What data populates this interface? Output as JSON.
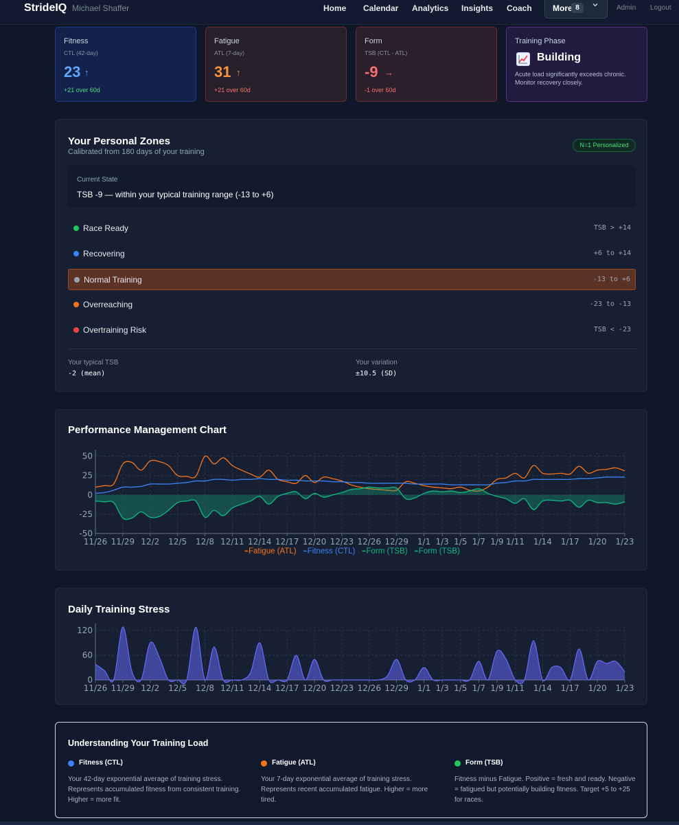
{
  "nav": {
    "brand": "StrideIQ",
    "user": "Michael Shaffer",
    "links": [
      "Home",
      "Calendar",
      "Analytics",
      "Insights",
      "Coach"
    ],
    "more_label": "More",
    "more_count": "8",
    "admin": "Admin",
    "logout": "Logout"
  },
  "cards": {
    "fitness": {
      "title": "Fitness",
      "subtitle": "CTL (42-day)",
      "value": "23",
      "arrow": "↑",
      "delta": "+21 over 60d",
      "color": "#60a5fa"
    },
    "fatigue": {
      "title": "Fatigue",
      "subtitle": "ATL (7-day)",
      "value": "31",
      "arrow": "↑",
      "delta": "+21 over 60d",
      "color": "#fb923c"
    },
    "form": {
      "title": "Form",
      "subtitle": "TSB (CTL - ATL)",
      "value": "-9",
      "arrow": "→",
      "delta": "-1 over 60d",
      "color": "#f87171"
    },
    "phase": {
      "title": "Training Phase",
      "icon": "chart-increasing-icon",
      "name": "Building",
      "description": "Acute load significantly exceeds chronic. Monitor recovery closely."
    }
  },
  "zones": {
    "title": "Your Personal Zones",
    "subtitle": "Calibrated from 180 days of your training",
    "badge": "N=1 Personalized",
    "state_label": "Current State",
    "state_text": "TSB -9 — within your typical training range (-13 to +6)",
    "items": [
      {
        "name": "Race Ready",
        "range": "TSB > +14",
        "color": "#22c55e"
      },
      {
        "name": "Recovering",
        "range": "+6 to +14",
        "color": "#3b82f6"
      },
      {
        "name": "Normal Training",
        "range": "-13 to +6",
        "color": "#9ca3af"
      },
      {
        "name": "Overreaching",
        "range": "-23 to -13",
        "color": "#f97316"
      },
      {
        "name": "Overtraining Risk",
        "range": "TSB < -23",
        "color": "#ef4444"
      }
    ],
    "active_zone": "Normal Training",
    "typical_label": "Your typical TSB",
    "typical_value": "-2 (mean)",
    "variation_label": "Your variation",
    "variation_value": "±10.5 (SD)"
  },
  "pmc": {
    "title": "Performance Management Chart",
    "legend": [
      "Fatigue (ATL)",
      "Fitness (CTL)",
      "Form (TSB)",
      "Form (TSB)"
    ]
  },
  "daily": {
    "title": "Daily Training Stress"
  },
  "understanding": {
    "title": "Understanding Your Training Load",
    "items": [
      {
        "name": "Fitness (CTL)",
        "color": "#3b82f6",
        "description": "Your 42-day exponential average of training stress. Represents accumulated fitness from consistent training. Higher = more fit."
      },
      {
        "name": "Fatigue (ATL)",
        "color": "#f97316",
        "description": "Your 7-day exponential average of training stress. Represents recent accumulated fatigue. Higher = more tired."
      },
      {
        "name": "Form (TSB)",
        "color": "#22c55e",
        "description": "Fitness minus Fatigue. Positive = fresh and ready. Negative = fatigued but potentially building fitness. Target +5 to +25 for races."
      }
    ]
  },
  "chart_data": [
    {
      "type": "line",
      "title": "Performance Management Chart",
      "x_ticks": [
        "11/26",
        "11/29",
        "12/2",
        "12/5",
        "12/8",
        "12/11",
        "12/14",
        "12/17",
        "12/20",
        "12/23",
        "12/26",
        "12/29",
        "1/1",
        "1/3",
        "1/5",
        "1/7",
        "1/9",
        "1/11",
        "1/14",
        "1/17",
        "1/20",
        "1/23"
      ],
      "y_ticks": [
        50,
        25,
        0,
        -25,
        -50
      ],
      "ylim": [
        -50,
        55
      ],
      "x": [
        "11/26",
        "11/27",
        "11/28",
        "11/29",
        "11/30",
        "12/1",
        "12/2",
        "12/3",
        "12/4",
        "12/5",
        "12/6",
        "12/7",
        "12/8",
        "12/9",
        "12/10",
        "12/11",
        "12/12",
        "12/13",
        "12/14",
        "12/15",
        "12/16",
        "12/17",
        "12/18",
        "12/19",
        "12/20",
        "12/21",
        "12/22",
        "12/23",
        "12/24",
        "12/25",
        "12/26",
        "12/27",
        "12/28",
        "12/29",
        "12/30",
        "12/31",
        "1/1",
        "1/2",
        "1/3",
        "1/4",
        "1/5",
        "1/6",
        "1/7",
        "1/8",
        "1/9",
        "1/10",
        "1/11",
        "1/12",
        "1/13",
        "1/14",
        "1/15",
        "1/16",
        "1/17",
        "1/18",
        "1/19",
        "1/20",
        "1/21",
        "1/22",
        "1/23"
      ],
      "series": [
        {
          "name": "Fatigue (ATL)",
          "color": "#f97316",
          "values": [
            10,
            12,
            14,
            40,
            42,
            32,
            44,
            43,
            38,
            25,
            24,
            24,
            50,
            40,
            48,
            38,
            32,
            27,
            23,
            32,
            20,
            17,
            15,
            25,
            16,
            23,
            21,
            18,
            13,
            10,
            8,
            7,
            6,
            6,
            17,
            15,
            12,
            10,
            9,
            8,
            10,
            6,
            5,
            10,
            20,
            22,
            28,
            22,
            38,
            28,
            27,
            28,
            27,
            37,
            28,
            32,
            33,
            35,
            31
          ],
          "stroke_width": 1.3
        },
        {
          "name": "Fitness (CTL)",
          "color": "#3b82f6",
          "values": [
            2,
            3,
            6,
            10,
            10,
            11,
            14,
            14,
            14,
            15,
            16,
            18,
            18,
            20,
            20,
            19,
            20,
            20,
            21,
            20,
            20,
            19,
            19,
            18,
            18,
            18,
            17,
            17,
            16,
            16,
            15,
            15,
            15,
            15,
            15,
            14,
            14,
            14,
            14,
            13,
            13,
            13,
            13,
            13,
            15,
            16,
            18,
            18,
            20,
            20,
            20,
            20,
            20,
            21,
            21,
            22,
            23,
            23,
            23
          ],
          "stroke_width": 1.3
        },
        {
          "name": "Form (TSB)",
          "color": "#10b981",
          "type": "area",
          "values": [
            -8,
            -9,
            -10,
            -30,
            -30,
            -22,
            -29,
            -28,
            -20,
            -10,
            -8,
            -8,
            -29,
            -20,
            -27,
            -17,
            -12,
            -8,
            -2,
            -12,
            -2,
            2,
            4,
            -5,
            2,
            -3,
            0,
            3,
            7,
            8,
            10,
            9,
            9,
            9,
            -5,
            -4,
            2,
            5,
            4,
            5,
            3,
            5,
            8,
            2,
            -2,
            -5,
            -11,
            -5,
            -19,
            -8,
            -7,
            -8,
            -7,
            -16,
            -7,
            -10,
            -10,
            -12,
            -9
          ],
          "stroke_width": 1.3
        }
      ]
    },
    {
      "type": "area",
      "title": "Daily Training Stress",
      "x_ticks": [
        "11/26",
        "11/29",
        "12/2",
        "12/5",
        "12/8",
        "12/11",
        "12/14",
        "12/17",
        "12/20",
        "12/23",
        "12/26",
        "12/29",
        "1/1",
        "1/3",
        "1/5",
        "1/7",
        "1/9",
        "1/11",
        "1/14",
        "1/17",
        "1/20",
        "1/23"
      ],
      "y_ticks": [
        120,
        60,
        0
      ],
      "ylim": [
        0,
        130
      ],
      "x": [
        "11/26",
        "11/27",
        "11/28",
        "11/29",
        "11/30",
        "12/1",
        "12/2",
        "12/3",
        "12/4",
        "12/5",
        "12/6",
        "12/7",
        "12/8",
        "12/9",
        "12/10",
        "12/11",
        "12/12",
        "12/13",
        "12/14",
        "12/15",
        "12/16",
        "12/17",
        "12/18",
        "12/19",
        "12/20",
        "12/21",
        "12/22",
        "12/23",
        "12/24",
        "12/25",
        "12/26",
        "12/27",
        "12/28",
        "12/29",
        "12/30",
        "12/31",
        "1/1",
        "1/2",
        "1/3",
        "1/4",
        "1/5",
        "1/6",
        "1/7",
        "1/8",
        "1/9",
        "1/10",
        "1/11",
        "1/12",
        "1/13",
        "1/14",
        "1/15",
        "1/16",
        "1/17",
        "1/18",
        "1/19",
        "1/20",
        "1/21",
        "1/22",
        "1/23"
      ],
      "series": [
        {
          "name": "Daily Training Stress",
          "color": "#6366f1",
          "values": [
            38,
            22,
            0,
            128,
            20,
            0,
            90,
            55,
            0,
            0,
            0,
            128,
            0,
            80,
            0,
            0,
            0,
            18,
            90,
            0,
            0,
            0,
            60,
            0,
            50,
            0,
            0,
            0,
            0,
            0,
            0,
            0,
            10,
            50,
            0,
            0,
            30,
            0,
            0,
            0,
            0,
            0,
            45,
            0,
            70,
            50,
            0,
            0,
            95,
            0,
            30,
            30,
            0,
            75,
            0,
            45,
            40,
            45,
            20
          ]
        }
      ]
    }
  ]
}
